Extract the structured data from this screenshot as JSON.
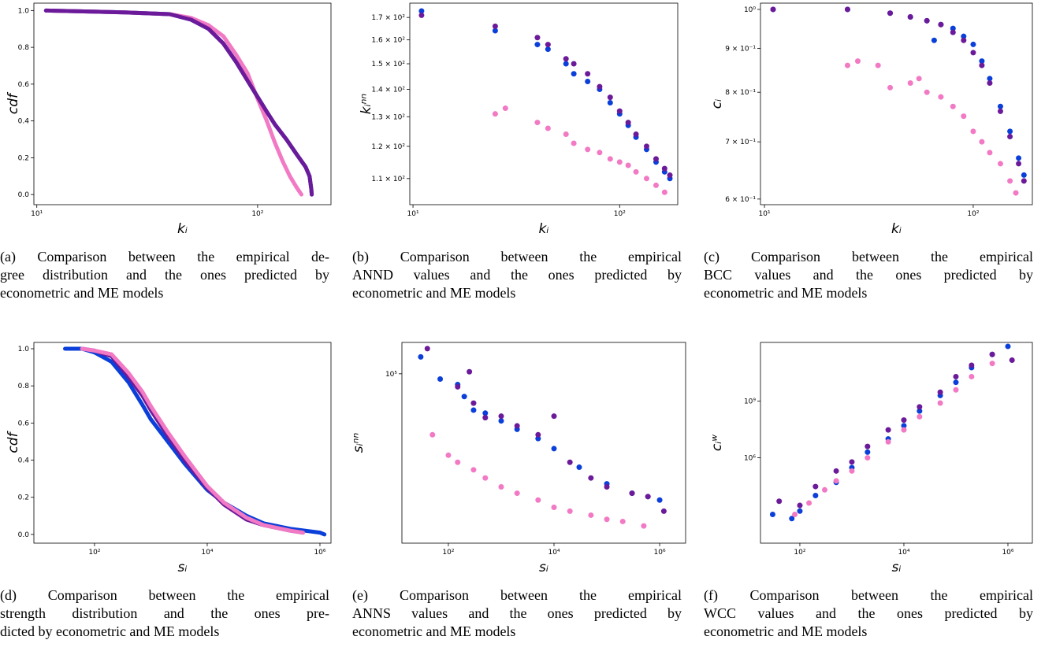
{
  "chart_data": [
    {
      "type": "line",
      "xscale": "log",
      "xlabel": "kᵢ",
      "ylabel": "cdf",
      "xlim": [
        9.7,
        215
      ],
      "ylim": [
        -0.055,
        1.04
      ],
      "xticks": [
        {
          "value": 10,
          "label": "10¹"
        },
        {
          "value": 100,
          "label": "10²"
        }
      ],
      "yticks": [
        {
          "value": 0,
          "label": "0.0"
        },
        {
          "value": 0.2,
          "label": "0.2"
        },
        {
          "value": 0.4,
          "label": "0.4"
        },
        {
          "value": 0.6,
          "label": "0.6"
        },
        {
          "value": 0.8,
          "label": "0.8"
        },
        {
          "value": 1,
          "label": "1.0"
        }
      ],
      "series": [
        {
          "color": "#0b3fd9",
          "x": [
            11,
            25,
            40,
            50,
            60,
            70,
            80,
            90,
            100,
            110,
            120,
            135,
            150,
            165,
            172,
            175,
            176
          ],
          "values": [
            1.0,
            0.99,
            0.98,
            0.95,
            0.9,
            0.82,
            0.72,
            0.62,
            0.53,
            0.45,
            0.38,
            0.3,
            0.22,
            0.15,
            0.1,
            0.03,
            0.0
          ]
        },
        {
          "color": "#f279c4",
          "x": [
            11,
            25,
            40,
            50,
            60,
            70,
            80,
            90,
            100,
            110,
            120,
            130,
            140,
            150,
            158
          ],
          "values": [
            1.0,
            0.99,
            0.98,
            0.96,
            0.92,
            0.86,
            0.76,
            0.66,
            0.52,
            0.4,
            0.28,
            0.18,
            0.1,
            0.04,
            0.0
          ]
        },
        {
          "color": "#6b1a9a",
          "x": [
            11,
            25,
            40,
            50,
            60,
            70,
            80,
            90,
            100,
            110,
            120,
            135,
            150,
            165,
            172,
            175,
            176
          ],
          "values": [
            1.0,
            0.99,
            0.98,
            0.95,
            0.9,
            0.82,
            0.72,
            0.62,
            0.53,
            0.45,
            0.38,
            0.3,
            0.22,
            0.15,
            0.1,
            0.03,
            0.0
          ]
        }
      ],
      "caption": [
        "(a) Comparison between the empirical de-",
        "gree distribution and the ones predicted by",
        "econometric and ME models"
      ]
    },
    {
      "type": "scatter",
      "xscale": "log",
      "yscale": "log",
      "xlabel": "kᵢ",
      "ylabel": "kᵢⁿⁿ",
      "xlim": [
        9.65,
        191
      ],
      "ylim": [
        102.5,
        176.7
      ],
      "xticks": [
        {
          "value": 10,
          "label": "10¹"
        },
        {
          "value": 100,
          "label": "10²"
        }
      ],
      "yticks": [
        {
          "value": 110,
          "label": "1.1 × 10²"
        },
        {
          "value": 120,
          "label": "1.2 × 10²"
        },
        {
          "value": 130,
          "label": "1.3 × 10²"
        },
        {
          "value": 140,
          "label": "1.4 × 10²"
        },
        {
          "value": 150,
          "label": "1.5 × 10²"
        },
        {
          "value": 160,
          "label": "1.6 × 10²"
        },
        {
          "value": 170,
          "label": "1.7 × 10²"
        }
      ],
      "series": [
        {
          "color": "#0b3fd9",
          "x": [
            11,
            25,
            40,
            45,
            55,
            60,
            70,
            80,
            90,
            100,
            110,
            120,
            135,
            150,
            165,
            175
          ],
          "values": [
            173,
            164,
            158,
            156,
            150,
            146,
            143,
            140,
            135,
            131,
            127,
            123,
            119,
            115,
            112,
            110
          ]
        },
        {
          "color": "#6b1a9a",
          "x": [
            11,
            25,
            40,
            45,
            55,
            60,
            70,
            80,
            90,
            100,
            110,
            120,
            135,
            150,
            165,
            175
          ],
          "values": [
            171,
            166,
            161,
            158,
            152,
            150,
            146,
            141,
            137,
            132,
            128,
            124,
            120,
            116,
            113,
            111
          ]
        },
        {
          "color": "#f279c4",
          "x": [
            25,
            28,
            40,
            45,
            55,
            60,
            70,
            80,
            90,
            100,
            110,
            120,
            135,
            150,
            165
          ],
          "values": [
            131,
            133,
            128,
            126,
            124,
            121,
            119,
            118,
            116,
            115,
            114,
            112,
            110,
            108,
            106
          ]
        }
      ],
      "caption": [
        "(b) Comparison between the empirical",
        "ANND values and the ones predicted by",
        "econometric and ME models"
      ]
    },
    {
      "type": "scatter",
      "xscale": "log",
      "yscale": "log",
      "xlabel": "kᵢ",
      "ylabel": "cᵢ",
      "xlim": [
        9.57,
        192
      ],
      "ylim": [
        0.591,
        1.017
      ],
      "xticks": [
        {
          "value": 10,
          "label": "10¹"
        },
        {
          "value": 100,
          "label": "10²"
        }
      ],
      "yticks": [
        {
          "value": 0.6,
          "label": "6 × 10⁻¹"
        },
        {
          "value": 0.7,
          "label": "7 × 10⁻¹"
        },
        {
          "value": 0.8,
          "label": "8 × 10⁻¹"
        },
        {
          "value": 0.9,
          "label": "9 × 10⁻¹"
        },
        {
          "value": 1,
          "label": "10⁰"
        }
      ],
      "series": [
        {
          "color": "#0b3fd9",
          "x": [
            11,
            25,
            40,
            50,
            60,
            65,
            70,
            80,
            90,
            100,
            110,
            120,
            135,
            150,
            165,
            175
          ],
          "values": [
            1.0,
            1.0,
            0.99,
            0.98,
            0.97,
            0.92,
            0.96,
            0.95,
            0.93,
            0.91,
            0.87,
            0.83,
            0.77,
            0.72,
            0.67,
            0.64
          ]
        },
        {
          "color": "#6b1a9a",
          "x": [
            11,
            25,
            40,
            50,
            60,
            70,
            80,
            90,
            100,
            110,
            120,
            135,
            150,
            165,
            175
          ],
          "values": [
            1.0,
            1.0,
            0.99,
            0.98,
            0.97,
            0.96,
            0.94,
            0.92,
            0.89,
            0.86,
            0.82,
            0.76,
            0.71,
            0.66,
            0.63
          ]
        },
        {
          "color": "#f279c4",
          "x": [
            25,
            28,
            35,
            40,
            50,
            55,
            60,
            70,
            80,
            90,
            100,
            110,
            120,
            135,
            150,
            160
          ],
          "values": [
            0.86,
            0.87,
            0.86,
            0.81,
            0.82,
            0.83,
            0.8,
            0.79,
            0.77,
            0.75,
            0.72,
            0.7,
            0.68,
            0.66,
            0.63,
            0.61
          ]
        }
      ],
      "caption": [
        "(c) Comparison between the empirical",
        "BCC values and the ones predicted by",
        "econometric and ME models"
      ]
    },
    {
      "type": "line",
      "xscale": "log",
      "xlabel": "sᵢ",
      "ylabel": "cdf",
      "xlim": [
        8.4,
        1570000
      ],
      "ylim": [
        -0.047,
        1.034
      ],
      "xticks": [
        {
          "value": 100,
          "label": "10²"
        },
        {
          "value": 10000,
          "label": "10⁴"
        },
        {
          "value": 1000000,
          "label": "10⁶"
        }
      ],
      "yticks": [
        {
          "value": 0,
          "label": "0.0"
        },
        {
          "value": 0.2,
          "label": "0.2"
        },
        {
          "value": 0.4,
          "label": "0.4"
        },
        {
          "value": 0.6,
          "label": "0.6"
        },
        {
          "value": 0.8,
          "label": "0.8"
        },
        {
          "value": 1,
          "label": "1.0"
        }
      ],
      "series": [
        {
          "color": "#0b3fd9",
          "x": [
            30,
            60,
            100,
            200,
            400,
            700,
            1000,
            2000,
            4000,
            10000,
            20000,
            50000,
            100000,
            300000,
            1000000,
            1200000
          ],
          "values": [
            1.0,
            1.0,
            0.98,
            0.93,
            0.82,
            0.7,
            0.62,
            0.5,
            0.38,
            0.24,
            0.17,
            0.1,
            0.06,
            0.03,
            0.01,
            0.0
          ]
        },
        {
          "color": "#6b1a9a",
          "x": [
            60,
            100,
            200,
            400,
            700,
            1000,
            2000,
            4000,
            10000,
            20000,
            50000,
            100000,
            300000,
            500000
          ],
          "values": [
            1.0,
            0.99,
            0.96,
            0.85,
            0.75,
            0.67,
            0.53,
            0.4,
            0.25,
            0.16,
            0.08,
            0.05,
            0.02,
            0.01
          ]
        },
        {
          "color": "#f279c4",
          "x": [
            60,
            100,
            200,
            400,
            700,
            1000,
            2000,
            4000,
            10000,
            20000,
            50000,
            100000,
            300000,
            500000
          ],
          "values": [
            1.0,
            0.99,
            0.97,
            0.87,
            0.77,
            0.69,
            0.55,
            0.42,
            0.26,
            0.17,
            0.09,
            0.05,
            0.02,
            0.01
          ]
        }
      ],
      "caption": [
        "(d) Comparison between the empirical",
        "strength distribution and the ones pre-",
        "dicted by econometric and ME models"
      ]
    },
    {
      "type": "scatter",
      "xscale": "log",
      "yscale": "log",
      "xlabel": "sᵢ",
      "ylabel": "sᵢⁿⁿ",
      "xlim": [
        13.2,
        3100000
      ],
      "ylim": [
        19000,
        136000
      ],
      "xticks": [
        {
          "value": 100,
          "label": "10²"
        },
        {
          "value": 10000,
          "label": "10⁴"
        },
        {
          "value": 1000000,
          "label": "10⁶"
        }
      ],
      "yticks": [
        {
          "value": 100000,
          "label": "10⁵"
        }
      ],
      "series": [
        {
          "color": "#0b3fd9",
          "x": [
            30,
            70,
            150,
            200,
            300,
            500,
            1000,
            2000,
            5000,
            10000,
            30000,
            100000,
            300000,
            600000,
            1000000
          ],
          "values": [
            118000,
            95000,
            90000,
            80000,
            70000,
            68000,
            63000,
            58000,
            53000,
            48000,
            40000,
            34000,
            31000,
            30000,
            29000
          ]
        },
        {
          "color": "#6b1a9a",
          "x": [
            40,
            150,
            250,
            300,
            500,
            1000,
            2000,
            5000,
            10000,
            20000,
            50000,
            100000,
            300000,
            600000,
            1200000
          ],
          "values": [
            128000,
            88000,
            102000,
            75000,
            65000,
            66000,
            60000,
            55000,
            66000,
            42000,
            36000,
            33000,
            31000,
            30000,
            26000
          ]
        },
        {
          "color": "#f279c4",
          "x": [
            50,
            100,
            150,
            300,
            500,
            1000,
            2000,
            5000,
            10000,
            20000,
            50000,
            100000,
            200000,
            500000
          ],
          "values": [
            55000,
            45000,
            42000,
            39000,
            36000,
            33000,
            31000,
            29000,
            27000,
            26000,
            25000,
            24000,
            23500,
            22500
          ]
        }
      ],
      "caption": [
        "(e) Comparison between the empirical",
        "ANNS values and the ones predicted by",
        "econometric and ME models"
      ]
    },
    {
      "type": "scatter",
      "xscale": "log",
      "yscale": "log",
      "xlabel": "sᵢ",
      "ylabel": "cᵢʷ",
      "xlim": [
        17.5,
        2950000
      ],
      "ylim": [
        30,
        1300000000000
      ],
      "xticks": [
        {
          "value": 100,
          "label": "10²"
        },
        {
          "value": 10000,
          "label": "10⁴"
        },
        {
          "value": 1000000,
          "label": "10⁶"
        }
      ],
      "yticks": [
        {
          "value": 1000000,
          "label": "10⁶"
        },
        {
          "value": 1000000000,
          "label": "10⁹"
        }
      ],
      "series": [
        {
          "color": "#0b3fd9",
          "x": [
            30,
            70,
            100,
            200,
            500,
            1000,
            2000,
            5000,
            10000,
            20000,
            50000,
            100000,
            200000,
            500000,
            1000000
          ],
          "values": [
            1000,
            600,
            1500,
            10000,
            50000,
            300000,
            2000000,
            10000000,
            50000000,
            300000000,
            2000000000,
            10000000000,
            60000000000,
            300000000000,
            800000000000
          ]
        },
        {
          "color": "#6b1a9a",
          "x": [
            40,
            100,
            200,
            500,
            1000,
            2000,
            5000,
            10000,
            20000,
            50000,
            100000,
            200000,
            500000,
            1200000
          ],
          "values": [
            5000,
            3000,
            30000,
            200000,
            600000,
            4000000,
            30000000,
            100000000,
            500000000,
            3000000000,
            20000000000,
            80000000000,
            300000000000,
            150000000000
          ]
        },
        {
          "color": "#f279c4",
          "x": [
            80,
            150,
            300,
            500,
            1000,
            2000,
            5000,
            10000,
            20000,
            50000,
            100000,
            200000,
            500000
          ],
          "values": [
            1000,
            4000,
            20000,
            60000,
            200000,
            1000000,
            7000000,
            30000000,
            150000000,
            800000000,
            4000000000,
            20000000000,
            100000000000
          ]
        }
      ],
      "caption": [
        "(f) Comparison between the empirical",
        "WCC values and the ones predicted by",
        "econometric and ME models"
      ]
    }
  ]
}
